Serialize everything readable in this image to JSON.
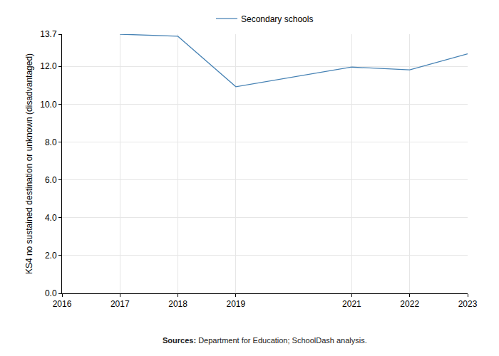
{
  "chart_data": {
    "type": "line",
    "y_label": "KS4 no sustained destination or unknown (disadvantaged)",
    "source_label": "Sources:",
    "source": "Department for Education; SchoolDash analysis.",
    "x": [
      2017,
      2018,
      2019,
      2021,
      2022,
      2023
    ],
    "series": [
      {
        "name": "Secondary schools",
        "color": "#4682b4",
        "values": [
          13.7,
          13.59,
          10.92,
          11.96,
          11.81,
          12.66
        ]
      }
    ],
    "xlim": [
      2016,
      2023
    ],
    "xticks": [
      2016,
      2017,
      2018,
      2019,
      2021,
      2022,
      2023
    ],
    "ylim": [
      0,
      13.7
    ],
    "yticks": [
      {
        "value": 0,
        "label": "0.0"
      },
      {
        "value": 2,
        "label": "2.0"
      },
      {
        "value": 4,
        "label": "4.0"
      },
      {
        "value": 6,
        "label": "6.0"
      },
      {
        "value": 8,
        "label": "8.0"
      },
      {
        "value": 10,
        "label": "10.0"
      },
      {
        "value": 12,
        "label": "12.0"
      },
      13.7
    ],
    "grid": true,
    "legend": "top"
  }
}
